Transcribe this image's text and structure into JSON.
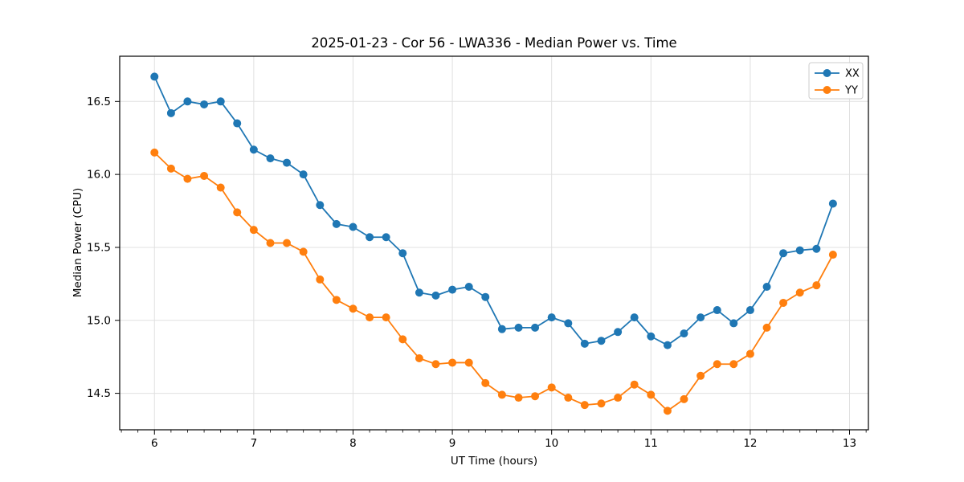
{
  "chart_data": {
    "type": "line",
    "title": "2025-01-23 - Cor 56 - LWA336 - Median Power vs. Time",
    "xlabel": "UT Time (hours)",
    "ylabel": "Median Power (CPU)",
    "x": [
      6.0,
      6.167,
      6.333,
      6.5,
      6.667,
      6.833,
      7.0,
      7.167,
      7.333,
      7.5,
      7.667,
      7.833,
      8.0,
      8.167,
      8.333,
      8.5,
      8.667,
      8.833,
      9.0,
      9.167,
      9.333,
      9.5,
      9.667,
      9.833,
      10.0,
      10.167,
      10.333,
      10.5,
      10.667,
      10.833,
      11.0,
      11.167,
      11.333,
      11.5,
      11.667,
      11.833,
      12.0,
      12.167,
      12.333,
      12.5,
      12.667,
      12.833
    ],
    "series": [
      {
        "name": "XX",
        "color": "#1f77b4",
        "values": [
          16.67,
          16.42,
          16.5,
          16.48,
          16.5,
          16.35,
          16.17,
          16.11,
          16.08,
          16.0,
          15.79,
          15.66,
          15.64,
          15.57,
          15.57,
          15.46,
          15.19,
          15.17,
          15.21,
          15.23,
          15.16,
          14.94,
          14.95,
          14.95,
          15.02,
          14.98,
          14.84,
          14.86,
          14.92,
          15.02,
          14.89,
          14.83,
          14.91,
          15.02,
          15.07,
          14.98,
          15.07,
          15.23,
          15.46,
          15.48,
          15.49,
          15.8
        ]
      },
      {
        "name": "YY",
        "color": "#ff7f0e",
        "values": [
          16.15,
          16.04,
          15.97,
          15.99,
          15.91,
          15.74,
          15.62,
          15.53,
          15.53,
          15.47,
          15.28,
          15.14,
          15.08,
          15.02,
          15.02,
          14.87,
          14.74,
          14.7,
          14.71,
          14.71,
          14.57,
          14.49,
          14.47,
          14.48,
          14.54,
          14.47,
          14.42,
          14.43,
          14.47,
          14.56,
          14.49,
          14.38,
          14.46,
          14.62,
          14.7,
          14.7,
          14.77,
          14.95,
          15.12,
          15.19,
          15.24,
          15.45
        ]
      }
    ],
    "xlim": [
      5.65,
      13.19
    ],
    "ylim": [
      14.25,
      16.81
    ],
    "xticks": [
      6,
      7,
      8,
      9,
      10,
      11,
      12,
      13
    ],
    "xticklabels": [
      "6",
      "7",
      "8",
      "9",
      "10",
      "11",
      "12",
      "13"
    ],
    "yticks": [
      14.5,
      15.0,
      15.5,
      16.0,
      16.5
    ],
    "yticklabels": [
      "14.5",
      "15.0",
      "15.5",
      "16.0",
      "16.5"
    ],
    "x_minor_tick_step": 0.16667,
    "grid": true,
    "legend_position": "upper right",
    "marker": "o"
  }
}
